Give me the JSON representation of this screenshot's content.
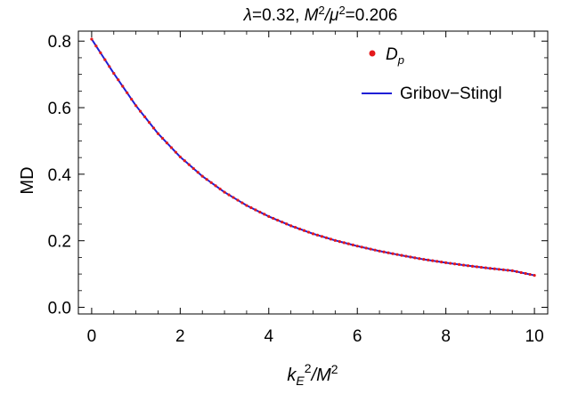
{
  "chart_data": {
    "type": "scatter",
    "title": "λ=0.32, M²/μ²=0.206",
    "title_parts": {
      "lambda": "λ",
      "lambda_value": "=0.32, ",
      "M": "M",
      "sq1": "2",
      "slash_mu": "/μ",
      "sq2": "2",
      "ratio_value": "=0.206"
    },
    "xlabel": "k_E²/M²",
    "xlabel_parts": {
      "k": "k",
      "sub": "E",
      "sup1": "2",
      "slash_M": "/M",
      "sup2": "2"
    },
    "ylabel": "MD",
    "xlim": [
      -0.3,
      10.3
    ],
    "ylim": [
      -0.02,
      0.83
    ],
    "x_ticks": [
      0,
      2,
      4,
      6,
      8,
      10
    ],
    "x_tick_labels": [
      "0",
      "2",
      "4",
      "6",
      "8",
      "10"
    ],
    "y_ticks": [
      0.0,
      0.2,
      0.4,
      0.6,
      0.8
    ],
    "y_tick_labels": [
      "0.0",
      "0.2",
      "0.4",
      "0.6",
      "0.8"
    ],
    "legend": {
      "position": "top-right",
      "entries": [
        {
          "label": "D",
          "label_sub": "p",
          "marker": "dot",
          "color": "#e41a1c"
        },
        {
          "label": "Gribov−Stingl",
          "marker": "line",
          "color": "#1f1fd6"
        }
      ]
    },
    "series": [
      {
        "name": "D_p",
        "kind": "points",
        "color": "#e41a1c",
        "x": [
          0,
          0.5,
          1,
          1.5,
          2,
          2.5,
          3,
          3.5,
          4,
          4.5,
          5,
          5.5,
          6,
          6.5,
          7,
          7.5,
          8,
          8.5,
          9,
          9.5,
          10
        ],
        "y": [
          0.806,
          0.703,
          0.606,
          0.522,
          0.452,
          0.394,
          0.346,
          0.306,
          0.273,
          0.245,
          0.221,
          0.201,
          0.184,
          0.169,
          0.156,
          0.144,
          0.134,
          0.125,
          0.117,
          0.11,
          0.096
        ],
        "dense_points_per_unit": 10
      },
      {
        "name": "Gribov−Stingl",
        "kind": "line",
        "color": "#1f1fd6",
        "x": [
          0,
          0.5,
          1,
          1.5,
          2,
          2.5,
          3,
          3.5,
          4,
          4.5,
          5,
          5.5,
          6,
          6.5,
          7,
          7.5,
          8,
          8.5,
          9,
          9.5,
          10
        ],
        "y": [
          0.806,
          0.703,
          0.606,
          0.522,
          0.452,
          0.394,
          0.346,
          0.306,
          0.273,
          0.245,
          0.221,
          0.201,
          0.184,
          0.169,
          0.156,
          0.144,
          0.134,
          0.125,
          0.117,
          0.11,
          0.096
        ]
      }
    ],
    "grid": false
  }
}
